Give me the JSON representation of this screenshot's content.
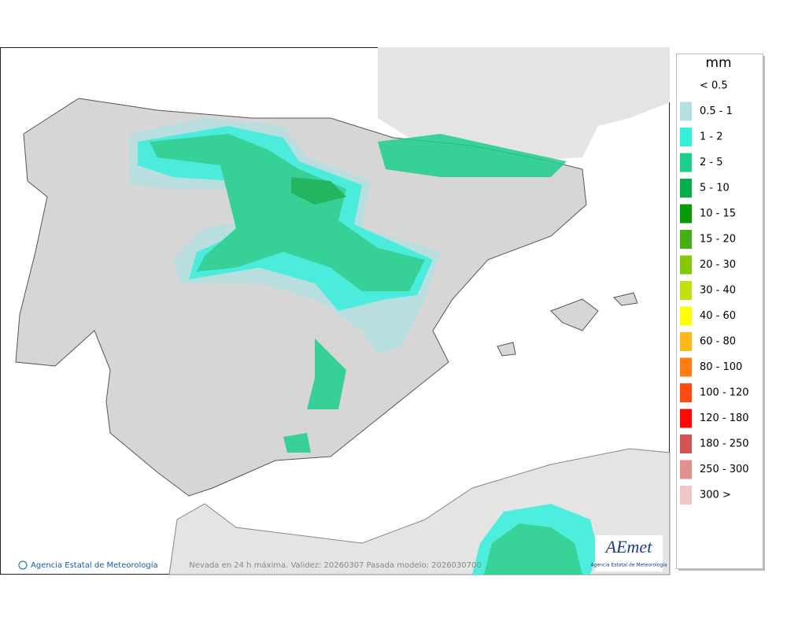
{
  "map": {
    "footer_left": "Agencia Estatal de Meteorología",
    "footer_center": "Nevada en 24 h máxima. Validez: 20260307 Pasada modelo: 2026030700",
    "logo": {
      "name": "AEmet",
      "subtitle": "Agencia Estatal de Meteorología"
    }
  },
  "legend": {
    "title": "mm",
    "items": [
      {
        "label": "< 0.5"
      },
      {
        "label": "0.5 - 1",
        "color": "#b4e0e2"
      },
      {
        "label": "1 - 2",
        "color": "#33f0dc"
      },
      {
        "label": "2 - 5",
        "color": "#1ccf8c"
      },
      {
        "label": "5 - 10",
        "color": "#05b04c"
      },
      {
        "label": "10 - 15",
        "color": "#089a08"
      },
      {
        "label": "15 - 20",
        "color": "#45b014"
      },
      {
        "label": "20 - 30",
        "color": "#84c80a"
      },
      {
        "label": "30 - 40",
        "color": "#c4e00c"
      },
      {
        "label": "40 - 60",
        "color": "#ffff00"
      },
      {
        "label": "60 - 80",
        "color": "#ffb818"
      },
      {
        "label": "80 - 100",
        "color": "#ff7c10"
      },
      {
        "label": "100 - 120",
        "color": "#ff4a10"
      },
      {
        "label": "120 - 180",
        "color": "#ff0808"
      },
      {
        "label": "180 - 250",
        "color": "#d25454"
      },
      {
        "label": "250 - 300",
        "color": "#e29090"
      },
      {
        "label": "300 >",
        "color": "#f0c6c6"
      }
    ]
  }
}
